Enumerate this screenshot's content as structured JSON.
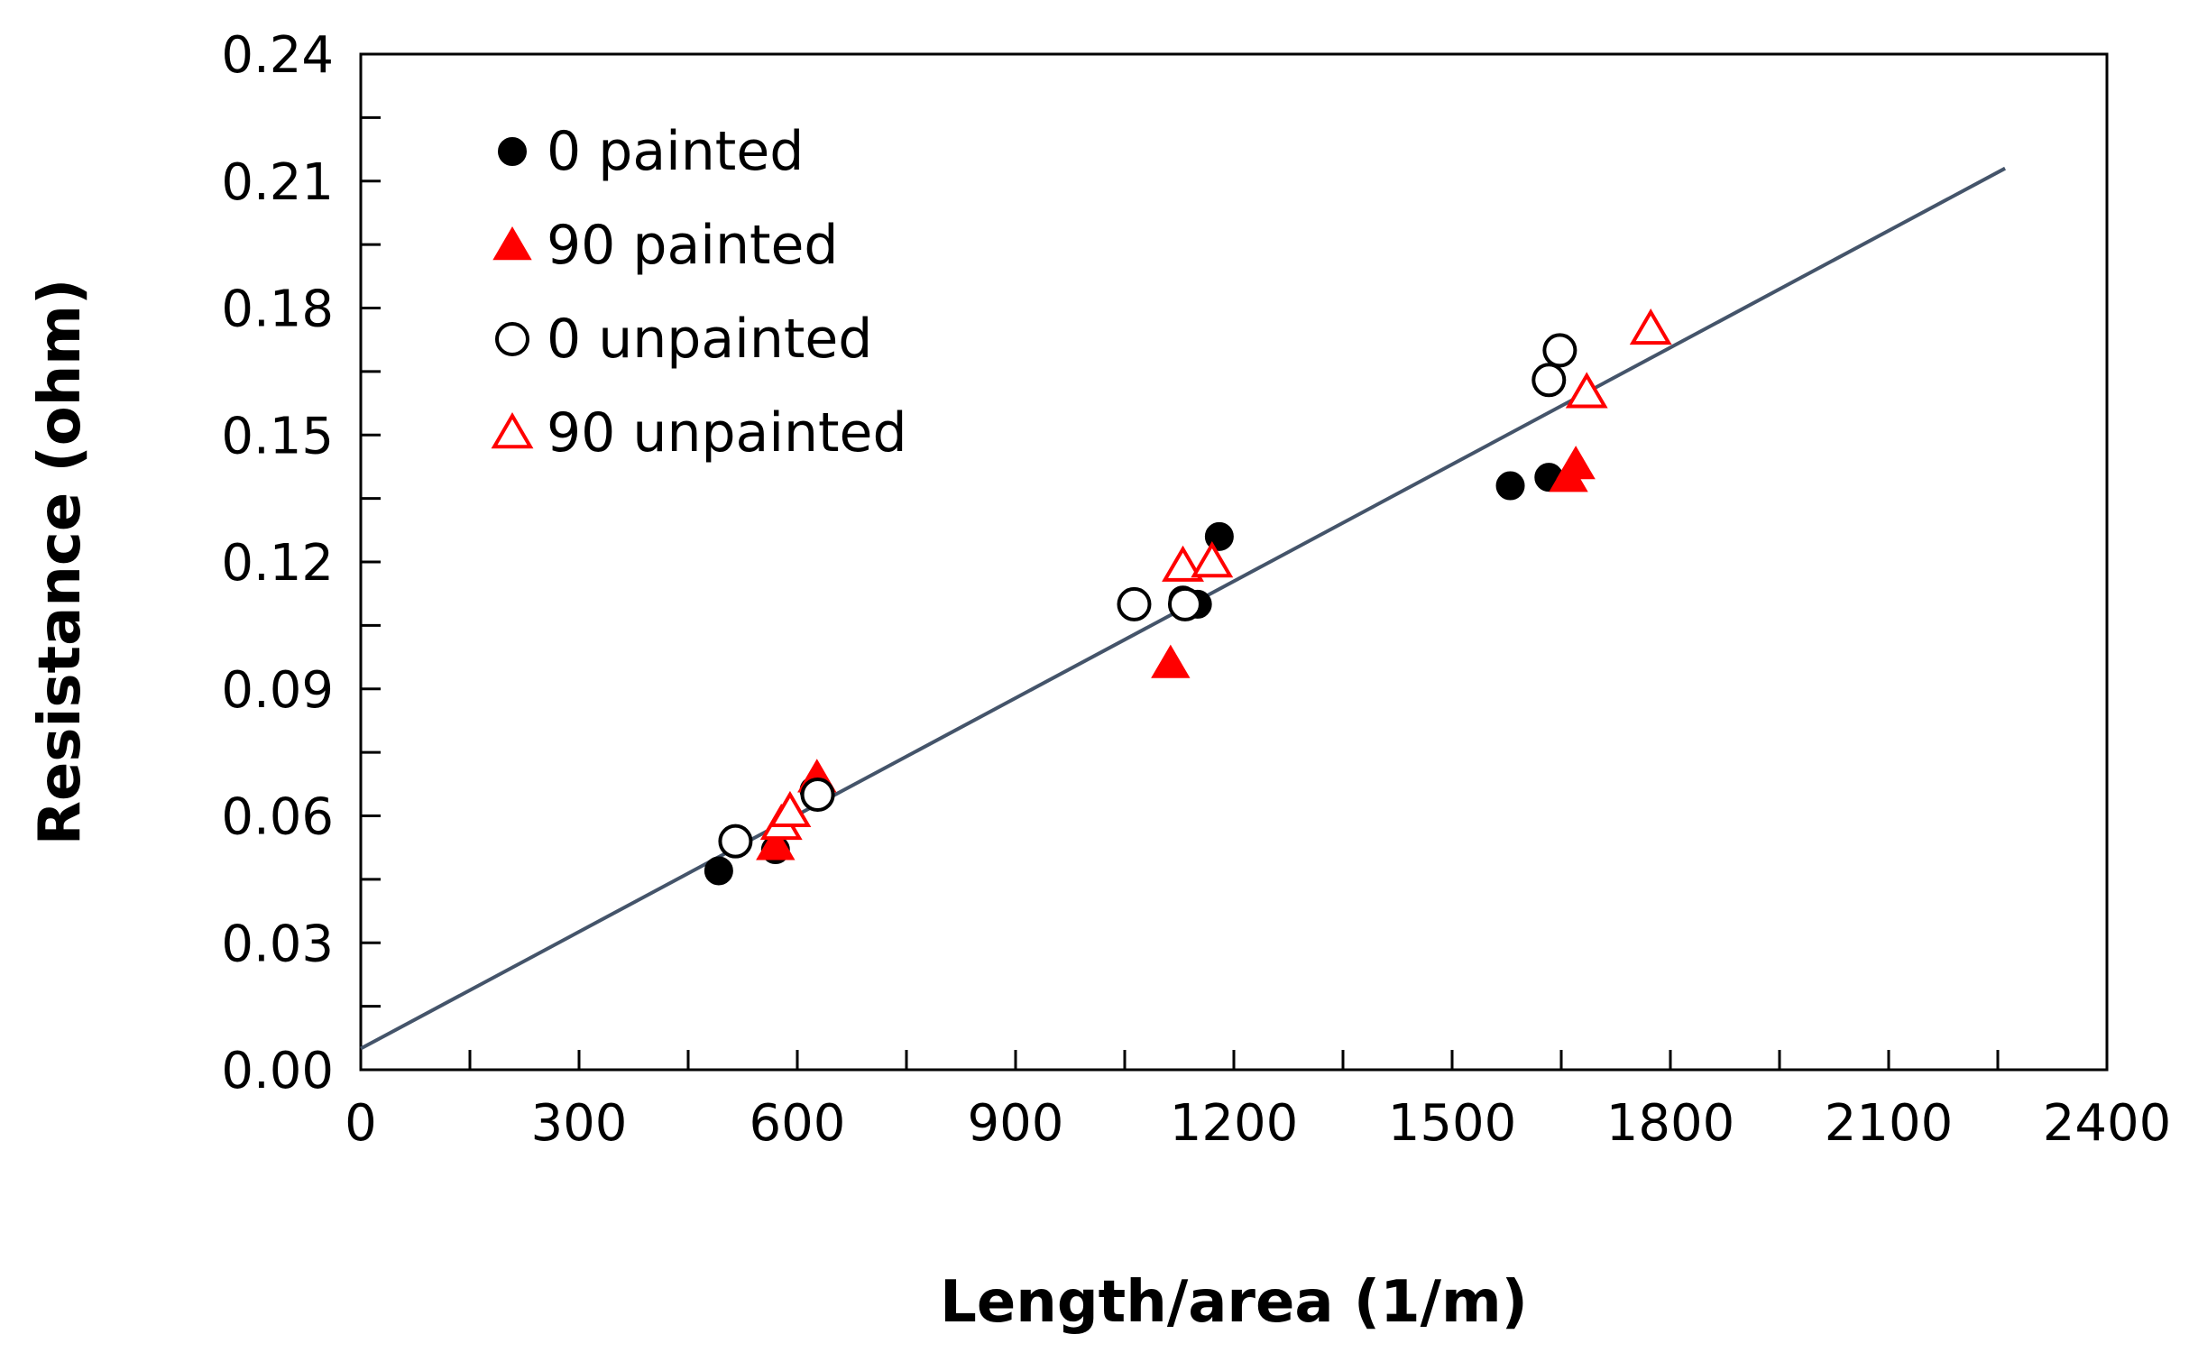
{
  "chart_data": {
    "type": "scatter",
    "xlabel": "Length/area (1/m)",
    "ylabel": "Resistance (ohm)",
    "xlim": [
      0,
      2400
    ],
    "ylim": [
      0,
      0.24
    ],
    "x_ticks": [
      "0",
      "300",
      "600",
      "900",
      "1200",
      "1500",
      "1800",
      "2100",
      "2400"
    ],
    "y_ticks": [
      "0.00",
      "0.03",
      "0.06",
      "0.09",
      "0.12",
      "0.15",
      "0.18",
      "0.21",
      "0.24"
    ],
    "grid": false,
    "legend_position": "top-left",
    "series": [
      {
        "name": "0 painted",
        "marker": "circle-filled",
        "color": "#000000",
        "points": [
          [
            492,
            0.047
          ],
          [
            570,
            0.052
          ],
          [
            623,
            0.066
          ],
          [
            1130,
            0.111
          ],
          [
            1150,
            0.11
          ],
          [
            1180,
            0.126
          ],
          [
            1580,
            0.138
          ],
          [
            1633,
            0.14
          ]
        ]
      },
      {
        "name": "90 painted",
        "marker": "triangle-filled",
        "color": "#ff0000",
        "points": [
          [
            570,
            0.053
          ],
          [
            627,
            0.069
          ],
          [
            1113,
            0.096
          ],
          [
            1660,
            0.14
          ],
          [
            1670,
            0.143
          ]
        ]
      },
      {
        "name": "0 unpainted",
        "marker": "circle-open",
        "color": "#000000",
        "points": [
          [
            515,
            0.054
          ],
          [
            628,
            0.065
          ],
          [
            1063,
            0.11
          ],
          [
            1133,
            0.11
          ],
          [
            1633,
            0.163
          ],
          [
            1648,
            0.17
          ]
        ]
      },
      {
        "name": "90 unpainted",
        "marker": "triangle-open",
        "color": "#ff0000",
        "points": [
          [
            578,
            0.058
          ],
          [
            590,
            0.061
          ],
          [
            1130,
            0.119
          ],
          [
            1170,
            0.12
          ],
          [
            1685,
            0.16
          ],
          [
            1773,
            0.175
          ]
        ]
      }
    ],
    "fit_line": {
      "color": "#44546a",
      "points": [
        [
          0,
          0.005
        ],
        [
          2260,
          0.213
        ]
      ]
    }
  }
}
